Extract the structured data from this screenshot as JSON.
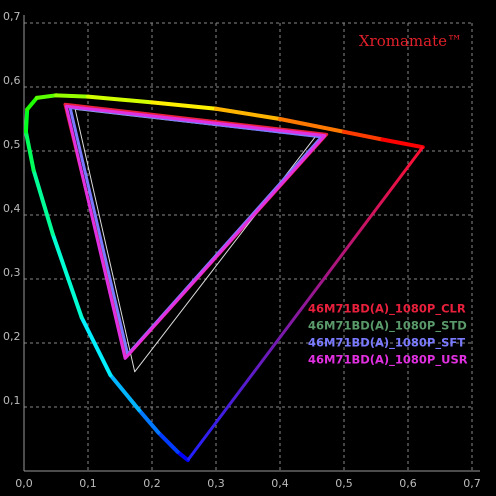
{
  "chart_data": {
    "type": "chromaticity",
    "title": "Xromamate™",
    "xlim": [
      0,
      0.7
    ],
    "ylim": [
      0,
      0.7
    ],
    "xticks": [
      {
        "value": 0,
        "label": "0,0"
      },
      {
        "value": 0.1,
        "label": "0,1"
      },
      {
        "value": 0.2,
        "label": "0,2"
      },
      {
        "value": 0.3,
        "label": "0,3"
      },
      {
        "value": 0.4,
        "label": "0,4"
      },
      {
        "value": 0.5,
        "label": "0,5"
      },
      {
        "value": 0.6,
        "label": "0,6"
      },
      {
        "value": 0.7,
        "label": "0,7"
      }
    ],
    "yticks": [
      {
        "value": 0.1,
        "label": "0,1"
      },
      {
        "value": 0.2,
        "label": "0,2"
      },
      {
        "value": 0.3,
        "label": "0,3"
      },
      {
        "value": 0.4,
        "label": "0,4"
      },
      {
        "value": 0.5,
        "label": "0,5"
      },
      {
        "value": 0.6,
        "label": "0,6"
      },
      {
        "value": 0.7,
        "label": "0,7"
      }
    ],
    "grid": true,
    "locus": {
      "x": [
        0.256,
        0.24,
        0.21,
        0.18,
        0.135,
        0.09,
        0.045,
        0.015,
        0.003,
        0.005,
        0.02,
        0.05,
        0.1,
        0.2,
        0.3,
        0.4,
        0.5,
        0.56,
        0.623
      ],
      "y": [
        0.017,
        0.03,
        0.06,
        0.095,
        0.15,
        0.24,
        0.37,
        0.47,
        0.53,
        0.565,
        0.583,
        0.587,
        0.585,
        0.576,
        0.566,
        0.55,
        0.53,
        0.518,
        0.506
      ]
    },
    "series": [
      {
        "name": "46M71BD(A)_1080P_CLR",
        "color": "#e8203c",
        "x": [
          0.473,
          0.064,
          0.16
        ],
        "y": [
          0.526,
          0.573,
          0.178
        ]
      },
      {
        "name": "46M71BD(A)_1080P_STD",
        "color": "#5a9a6a",
        "x": [
          0.455,
          0.08,
          0.173
        ],
        "y": [
          0.522,
          0.565,
          0.155
        ]
      },
      {
        "name": "46M71BD(A)_1080P_SFT",
        "color": "#7a7aff",
        "x": [
          0.465,
          0.072,
          0.162
        ],
        "y": [
          0.522,
          0.568,
          0.182
        ]
      },
      {
        "name": "46M71BD(A)_1080P_USR",
        "color": "#e030e0",
        "x": [
          0.47,
          0.066,
          0.158
        ],
        "y": [
          0.524,
          0.57,
          0.176
        ]
      }
    ]
  }
}
